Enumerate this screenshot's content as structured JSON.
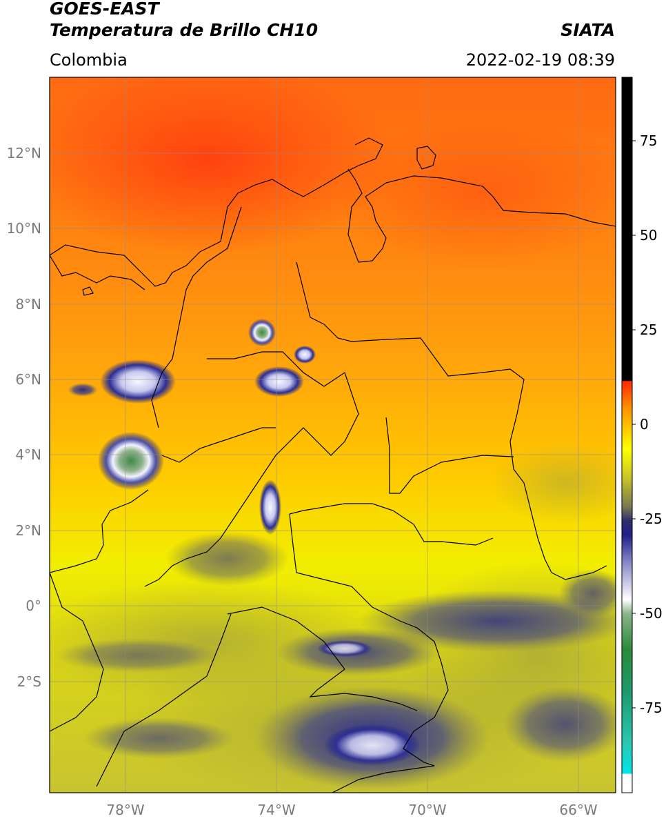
{
  "header": {
    "title_line1": "GOES-EAST",
    "title_line2": "Temperatura de Brillo CH10",
    "brand": "SIATA",
    "region": "Colombia",
    "timestamp": "2022-02-19 08:39"
  },
  "axes": {
    "lon_ticks": [
      "78°W",
      "74°W",
      "70°W",
      "66°W"
    ],
    "lat_ticks": [
      "12°N",
      "10°N",
      "8°N",
      "6°N",
      "4°N",
      "2°N",
      "0°",
      "2°S"
    ]
  },
  "colorbar": {
    "labels": [
      "75",
      "50",
      "25",
      "0",
      "-25",
      "-50",
      "-75"
    ]
  },
  "colors": {
    "warm_red": "#ff4a14",
    "orange": "#ff9a10",
    "yellow": "#f2ee00",
    "olive": "#c9c52a",
    "navy": "#1e1f86",
    "white": "#f4f4ff",
    "green": "#3a8a46",
    "cyan": "#20d8cc",
    "black": "#000000"
  }
}
